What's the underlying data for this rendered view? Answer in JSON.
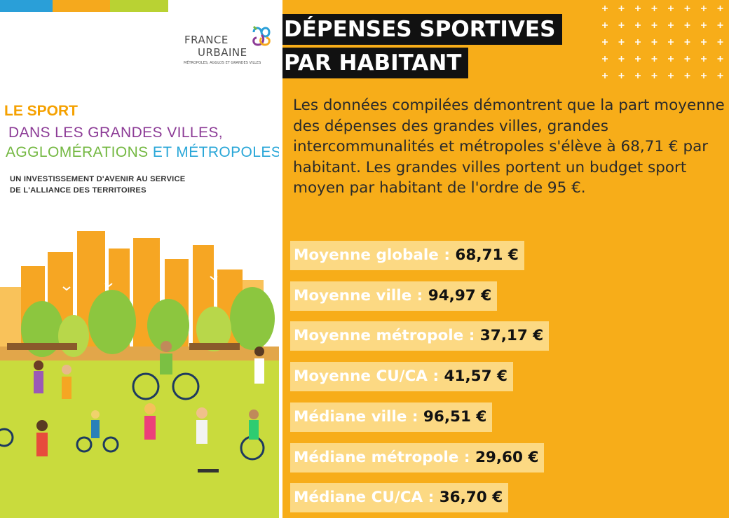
{
  "cover": {
    "logo": {
      "line1": "FRANCE",
      "line2": "URBAINE",
      "tagline": "MÉTROPOLES, AGGLOS ET GRANDES VILLES"
    },
    "title_line1": "LE SPORT",
    "title_line2": "DANS LES GRANDES VILLES,",
    "title_line3_a": "AGGLOMÉRATIONS",
    "title_line3_b": " ET MÉTROPOLES",
    "subtitle_line1": "UN INVESTISSEMENT D'AVENIR AU SERVICE",
    "subtitle_line2": "DE L'ALLIANCE DES TERRITOIRES",
    "colors": {
      "blue": "#2a9fd8",
      "orange": "#f5a91d",
      "green": "#b9d233",
      "purple": "#8c3b96"
    }
  },
  "infographic": {
    "heading_line1": "DÉPENSES SPORTIVES",
    "heading_line2": "PAR HABITANT",
    "intro": "Les données compilées démontrent que la part moyenne des dépenses des grandes villes, grandes intercommunalités et métropoles s'élève à 68,71 € par habitant. Les grandes villes portent un budget sport moyen par habitant de l'ordre de 95 €.",
    "stats": [
      {
        "label": "Moyenne globale",
        "value": "68,71 €"
      },
      {
        "label": "Moyenne ville",
        "value": "94,97 €"
      },
      {
        "label": "Moyenne métropole",
        "value": "37,17 €"
      },
      {
        "label": "Moyenne CU/CA",
        "value": "41,57 €"
      },
      {
        "label": "Médiane ville",
        "value": "96,51 €"
      },
      {
        "label": "Médiane métropole",
        "value": "29,60 €"
      },
      {
        "label": "Médiane CU/CA",
        "value": "36,70 €"
      }
    ],
    "colors": {
      "background": "#f7ad19",
      "heading_bg": "#111111",
      "row_bg": "#fcd983"
    }
  }
}
